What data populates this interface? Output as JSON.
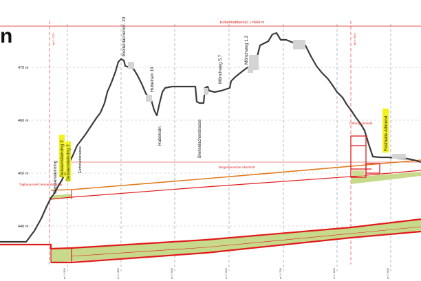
{
  "corner_letter": "n",
  "tunnel_title": "Hubelmatttunnel, L=564 m",
  "km_labels": [
    "km 1+279",
    "km 1+824"
  ],
  "axis": {
    "unit": "m",
    "ticks": [
      {
        "value": 470,
        "label": "470 m"
      },
      {
        "value": 460,
        "label": "460 m"
      },
      {
        "value": 450,
        "label": "450 m"
      },
      {
        "value": 440,
        "label": "440 m"
      }
    ]
  },
  "stations": [
    "m 1+300",
    "m 1+400",
    "m 1+500",
    "m 1+600",
    "m 1+700",
    "m 1+800",
    "m 1+900"
  ],
  "street_labels": [
    {
      "text": "Geissensteinring",
      "highlight": false
    },
    {
      "text": "Geissensteinring 2",
      "highlight": true
    },
    {
      "text": "Geissensteinring 2",
      "highlight": true
    },
    {
      "text": "Eichmattstrasse",
      "highlight": false
    },
    {
      "text": "Breitenlachenstr. 23",
      "highlight": false
    },
    {
      "text": "Hubelrain 19",
      "highlight": false
    },
    {
      "text": "Hubelrain",
      "highlight": false
    },
    {
      "text": "Breitenlachenstrasse",
      "highlight": false
    },
    {
      "text": "Mönchweg 5,7",
      "highlight": false
    },
    {
      "text": "Mönchweg 1,3",
      "highlight": false
    },
    {
      "text": "Festhalle Allmend",
      "highlight": true
    }
  ],
  "annotations": {
    "tagbau": "Tagbautunnel Geissensteinring",
    "bergmaennisch": "Bergmännischer Abschnitt",
    "lueftung": "Lüftungszentrale"
  },
  "colors": {
    "terrain": "#3a3a3a",
    "red": "#e01a1a",
    "orange": "#e07a1c",
    "fill_green": "#c7d98a",
    "highlight": "#f2f21a",
    "grid": "#9a9a9a"
  }
}
